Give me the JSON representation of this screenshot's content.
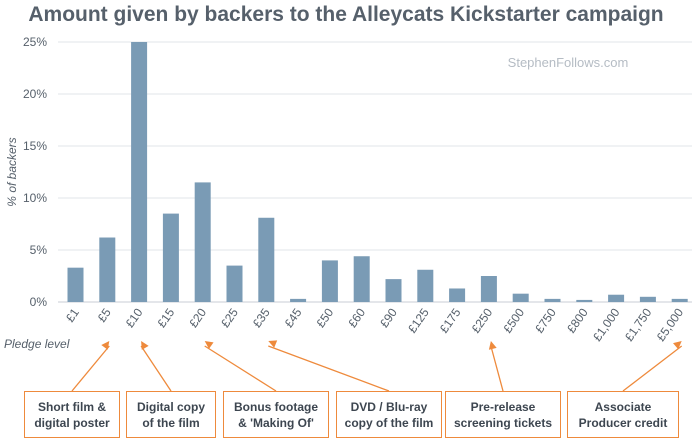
{
  "chart_data": {
    "type": "bar",
    "title": "Amount given by backers to the Alleycats Kickstarter campaign",
    "watermark": "StephenFollows.com",
    "xlabel": "Pledge level",
    "ylabel": "% of backers",
    "ylim": [
      0,
      25
    ],
    "yticks": [
      "0%",
      "5%",
      "10%",
      "15%",
      "20%",
      "25%"
    ],
    "grid": true,
    "categories": [
      "£1",
      "£5",
      "£10",
      "£15",
      "£20",
      "£25",
      "£35",
      "£45",
      "£50",
      "£60",
      "£90",
      "£125",
      "£175",
      "£250",
      "£500",
      "£750",
      "£800",
      "£1,000",
      "£1,750",
      "£5,000"
    ],
    "values": [
      3.3,
      6.2,
      25.0,
      8.5,
      11.5,
      3.5,
      8.1,
      0.3,
      4.0,
      4.4,
      2.2,
      3.1,
      1.3,
      2.5,
      0.8,
      0.3,
      0.2,
      0.7,
      0.5,
      0.3
    ],
    "color": "#7a9bb5",
    "annotations": [
      {
        "text": "Short film &\ndigital poster",
        "category": "£5"
      },
      {
        "text": "Digital copy\nof the film",
        "category": "£10"
      },
      {
        "text": "Bonus footage\n& 'Making Of'",
        "category": "£20"
      },
      {
        "text": "DVD / Blu-ray\ncopy of the film",
        "category": "£35"
      },
      {
        "text": "Pre-release\nscreening tickets",
        "category": "£250"
      },
      {
        "text": "Associate\nProducer credit",
        "category": "£5,000"
      }
    ],
    "annotation_color": "#ee8a3c"
  }
}
